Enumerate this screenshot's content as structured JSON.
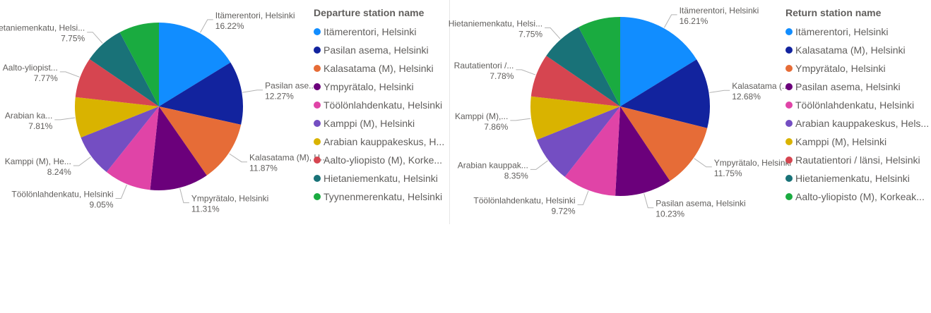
{
  "chart_data": [
    {
      "type": "pie",
      "legend_title": "Departure station name",
      "legend_position": "right",
      "slices": [
        {
          "name": "Itämerentori, Helsinki",
          "value": 16.22,
          "color": "#118DFF",
          "label_name": "Itämerentori, Helsinki",
          "label_value": "16.22%"
        },
        {
          "name": "Pasilan asema, Helsinki",
          "value": 12.27,
          "color": "#12239E",
          "label_name": "Pasilan ase...",
          "label_value": "12.27%"
        },
        {
          "name": "Kalasatama (M), Helsinki",
          "value": 11.87,
          "color": "#E66C37",
          "label_name": "Kalasatama (M), H...",
          "label_value": "11.87%"
        },
        {
          "name": "Ympyrätalo, Helsinki",
          "value": 11.31,
          "color": "#6B007B",
          "label_name": "Ympyrätalo, Helsinki",
          "label_value": "11.31%"
        },
        {
          "name": "Töölönlahdenkatu, Helsinki",
          "value": 9.05,
          "color": "#E044A7",
          "label_name": "Töölönlahdenkatu, Helsinki",
          "label_value": "9.05%"
        },
        {
          "name": "Kamppi (M), Helsinki",
          "value": 8.24,
          "color": "#744EC2",
          "label_name": "Kamppi (M), He...",
          "label_value": "8.24%"
        },
        {
          "name": "Arabian kauppakeskus, H...",
          "value": 7.81,
          "color": "#D9B300",
          "label_name": "Arabian ka...",
          "label_value": "7.81%"
        },
        {
          "name": "Aalto-yliopisto (M), Korke...",
          "value": 7.77,
          "color": "#D64550",
          "label_name": "Aalto-yliopist...",
          "label_value": "7.77%"
        },
        {
          "name": "Hietaniemenkatu, Helsinki",
          "value": 7.75,
          "color": "#197278",
          "label_name": "Hietaniemenkatu, Helsi...",
          "label_value": "7.75%"
        },
        {
          "name": "Tyynenmerenkatu, Helsinki",
          "value": 7.71,
          "color": "#1AAB40",
          "label_name": "",
          "label_value": ""
        }
      ]
    },
    {
      "type": "pie",
      "legend_title": "Return station name",
      "legend_position": "right",
      "slices": [
        {
          "name": "Itämerentori, Helsinki",
          "value": 16.21,
          "color": "#118DFF",
          "label_name": "Itämerentori, Helsinki",
          "label_value": "16.21%"
        },
        {
          "name": "Kalasatama (M), Helsinki",
          "value": 12.68,
          "color": "#12239E",
          "label_name": "Kalasatama (...",
          "label_value": "12.68%"
        },
        {
          "name": "Ympyrätalo, Helsinki",
          "value": 11.75,
          "color": "#E66C37",
          "label_name": "Ympyrätalo, Helsinki",
          "label_value": "11.75%"
        },
        {
          "name": "Pasilan asema, Helsinki",
          "value": 10.23,
          "color": "#6B007B",
          "label_name": "Pasilan asema, Helsinki",
          "label_value": "10.23%"
        },
        {
          "name": "Töölönlahdenkatu, Helsinki",
          "value": 9.72,
          "color": "#E044A7",
          "label_name": "Töölönlahdenkatu, Helsinki",
          "label_value": "9.72%"
        },
        {
          "name": "Arabian kauppakeskus, Hels...",
          "value": 8.35,
          "color": "#744EC2",
          "label_name": "Arabian kauppak...",
          "label_value": "8.35%"
        },
        {
          "name": "Kamppi (M), Helsinki",
          "value": 7.86,
          "color": "#D9B300",
          "label_name": "Kamppi (M),...",
          "label_value": "7.86%"
        },
        {
          "name": "Rautatientori / länsi, Helsinki",
          "value": 7.78,
          "color": "#D64550",
          "label_name": "Rautatientori /...",
          "label_value": "7.78%"
        },
        {
          "name": "Hietaniemenkatu, Helsinki",
          "value": 7.75,
          "color": "#197278",
          "label_name": "Hietaniemenkatu, Helsi...",
          "label_value": "7.75%"
        },
        {
          "name": "Aalto-yliopisto (M), Korkeak...",
          "value": 7.67,
          "color": "#1AAB40",
          "label_name": "",
          "label_value": ""
        }
      ]
    }
  ]
}
